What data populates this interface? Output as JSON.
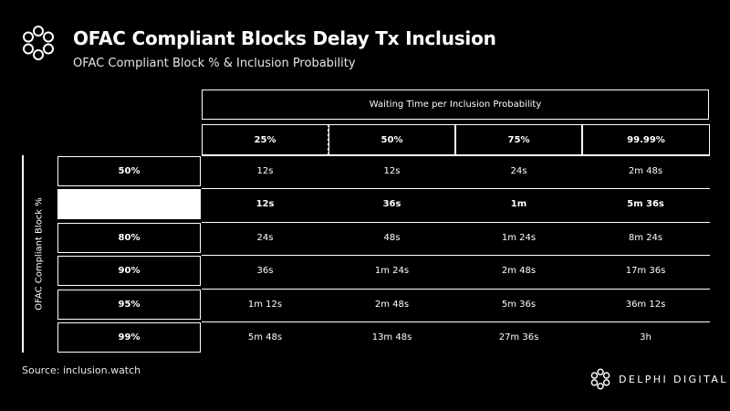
{
  "header": {
    "title": "OFAC Compliant Blocks Delay Tx Inclusion",
    "subtitle": "OFAC Compliant Block % & Inclusion Probability"
  },
  "footer": {
    "source": "Source: inclusion.watch",
    "brand": "DELPHI DIGITAL"
  },
  "colors": {
    "background": "#000000",
    "foreground": "#ffffff"
  },
  "chart_data": {
    "type": "table",
    "column_group_label": "Waiting Time per Inclusion Probability",
    "row_group_label": "OFAC Compliant Block %",
    "columns": [
      "25%",
      "50%",
      "75%",
      "99.99%"
    ],
    "rows": [
      {
        "label": "50%",
        "values": [
          "12s",
          "12s",
          "24s",
          "2m 48s"
        ]
      },
      {
        "label": "",
        "values": [
          "12s",
          "36s",
          "1m",
          "5m 36s"
        ],
        "highlighted": true
      },
      {
        "label": "80%",
        "values": [
          "24s",
          "48s",
          "1m 24s",
          "8m 24s"
        ]
      },
      {
        "label": "90%",
        "values": [
          "36s",
          "1m 24s",
          "2m 48s",
          "17m 36s"
        ]
      },
      {
        "label": "95%",
        "values": [
          "1m 12s",
          "2m 48s",
          "5m 36s",
          "36m 12s"
        ]
      },
      {
        "label": "99%",
        "values": [
          "5m 48s",
          "13m 48s",
          "27m 36s",
          "3h"
        ]
      }
    ]
  }
}
